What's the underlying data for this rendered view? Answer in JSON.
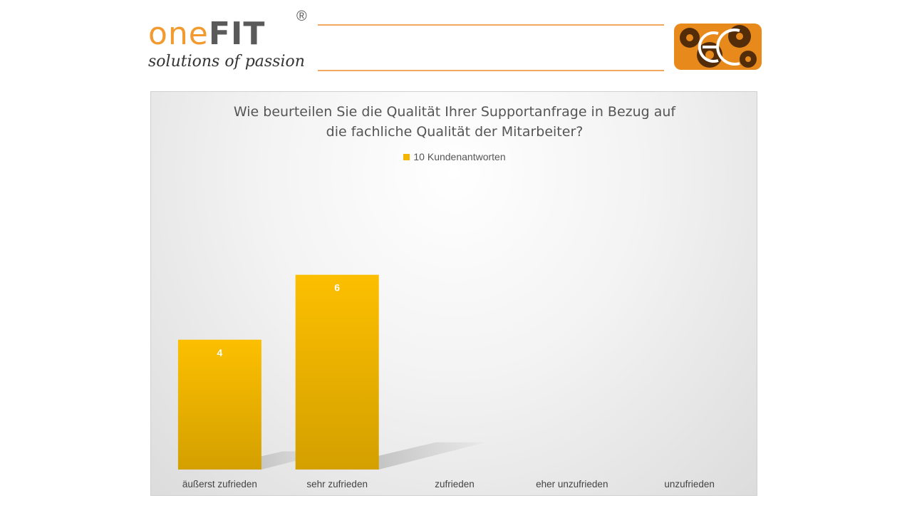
{
  "header": {
    "logo_one": "one",
    "logo_fit": "FIT",
    "logo_reg": "®",
    "logo_tagline": "solutions of passion",
    "accent_color": "#f29a2e"
  },
  "chart_data": {
    "type": "bar",
    "title_line1": "Wie beurteilen Sie die Qualität Ihrer Supportanfrage in Bezug auf",
    "title_line2": "die fachliche Qualität der Mitarbeiter?",
    "categories": [
      "äußerst zufrieden",
      "sehr zufrieden",
      "zufrieden",
      "eher unzufrieden",
      "unzufrieden"
    ],
    "series": [
      {
        "name": "10 Kundenantworten",
        "values": [
          4,
          6,
          0,
          0,
          0
        ],
        "color": "#f5b400"
      }
    ],
    "ylim": [
      0,
      9
    ],
    "grid": false,
    "legend_position": "top",
    "xlabel": "",
    "ylabel": ""
  }
}
